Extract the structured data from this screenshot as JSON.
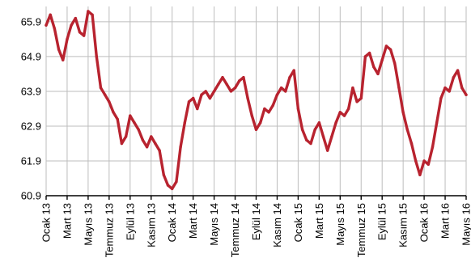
{
  "chart_data": {
    "type": "line",
    "title": "",
    "xlabel": "",
    "ylabel": "",
    "ylim": [
      60.9,
      66.2
    ],
    "yticks": [
      "60.9",
      "61.9",
      "62.9",
      "63.9",
      "64.9",
      "65.9"
    ],
    "categories": [
      "Ocak 13",
      "Mart 13",
      "Mayıs 13",
      "Temmuz 13",
      "Eylül 13",
      "Kasım 13",
      "Ocak 14",
      "Mart 14",
      "Mayıs 14",
      "Temmuz 14",
      "Eylül 14",
      "Kasım 14",
      "Ocak 15",
      "Mart 15",
      "Mayıs 15",
      "Temmuz 15",
      "Eylül 15",
      "Kasım 15",
      "Ocak 16",
      "Mart 16",
      "Mayıs 16"
    ],
    "grid": true,
    "legend": "none",
    "line_color": "#b8232f",
    "series": [
      {
        "x": [
          0,
          0.2,
          0.4,
          0.6,
          0.8,
          1.0,
          1.2,
          1.4,
          1.6,
          1.8,
          2.0,
          2.2,
          2.4,
          2.6,
          2.8,
          3.0,
          3.2,
          3.4,
          3.6,
          3.8,
          4.0,
          4.2,
          4.4,
          4.6,
          4.8,
          5.0,
          5.2,
          5.4,
          5.6,
          5.8,
          6.0,
          6.2,
          6.4,
          6.6,
          6.8,
          7.0,
          7.2,
          7.4,
          7.6,
          7.8,
          8.0,
          8.2,
          8.4,
          8.6,
          8.8,
          9.0,
          9.2,
          9.4,
          9.6,
          9.8,
          10.0,
          10.2,
          10.4,
          10.6,
          10.8,
          11.0,
          11.2,
          11.4,
          11.6,
          11.8,
          12.0,
          12.2,
          12.4,
          12.6,
          12.8,
          13.0,
          13.2,
          13.4,
          13.6,
          13.8,
          14.0,
          14.2,
          14.4,
          14.6,
          14.8,
          15.0,
          15.2,
          15.4,
          15.6,
          15.8,
          16.0,
          16.2,
          16.4,
          16.6,
          16.8,
          17.0,
          17.2,
          17.4,
          17.6,
          17.8,
          18.0,
          18.2,
          18.4,
          18.6,
          18.8,
          19.0,
          19.2,
          19.4,
          19.6,
          19.8,
          20.0
        ],
        "values": [
          65.8,
          66.1,
          65.7,
          65.1,
          64.8,
          65.4,
          65.8,
          66.0,
          65.6,
          65.5,
          66.2,
          66.1,
          64.9,
          64.0,
          63.8,
          63.6,
          63.3,
          63.1,
          62.4,
          62.6,
          63.2,
          63.0,
          62.8,
          62.5,
          62.3,
          62.6,
          62.4,
          62.2,
          61.5,
          61.2,
          61.1,
          61.3,
          62.3,
          63.0,
          63.6,
          63.7,
          63.4,
          63.8,
          63.9,
          63.7,
          63.9,
          64.1,
          64.3,
          64.1,
          63.9,
          64.0,
          64.2,
          64.3,
          63.7,
          63.2,
          62.8,
          63.0,
          63.4,
          63.3,
          63.5,
          63.8,
          64.0,
          63.9,
          64.3,
          64.5,
          63.4,
          62.8,
          62.5,
          62.4,
          62.8,
          63.0,
          62.6,
          62.2,
          62.6,
          63.0,
          63.3,
          63.2,
          63.4,
          64.0,
          63.6,
          63.7,
          64.9,
          65.0,
          64.6,
          64.4,
          64.8,
          65.2,
          65.1,
          64.7,
          64.0,
          63.3,
          62.8,
          62.4,
          61.9,
          61.5,
          61.9,
          61.8,
          62.3,
          63.0,
          63.7,
          64.0,
          63.9,
          64.3,
          64.5,
          64.0,
          63.8
        ]
      }
    ]
  }
}
